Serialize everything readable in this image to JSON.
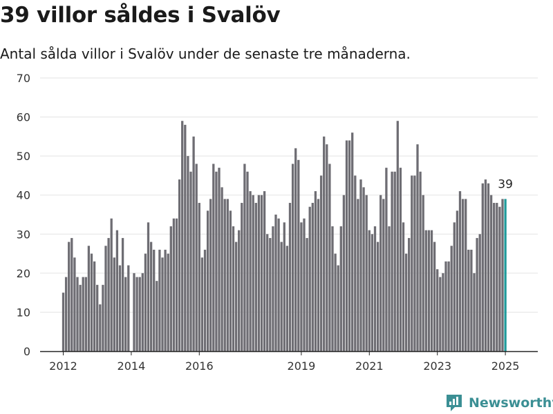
{
  "header": {
    "title": "39 villor såldes i Svalöv",
    "subtitle": "Antal sålda villor i Svalöv under de senaste tre månaderna."
  },
  "brand": {
    "name": "Newsworthy",
    "icon": "newsworthy-logo-icon"
  },
  "colors": {
    "bar": "#6e6d73",
    "highlight": "#1f9a9a",
    "grid": "#e3e3e3",
    "brand": "#3b8f94"
  },
  "chart_data": {
    "type": "bar",
    "title": "39 villor såldes i Svalöv",
    "subtitle": "Antal sålda villor i Svalöv under de senaste tre månaderna.",
    "xlabel": "",
    "ylabel": "",
    "ylim": [
      0,
      70
    ],
    "y_ticks": [
      0,
      10,
      20,
      30,
      40,
      50,
      60,
      70
    ],
    "x_ticks": [
      "2012",
      "2014",
      "2016",
      "2019",
      "2021",
      "2023",
      "2025"
    ],
    "grid": true,
    "frequency": "monthly, rolling three-month sum",
    "start": "2012-01",
    "end": "2025-01",
    "highlight": {
      "label": "39",
      "period": "2025-01",
      "value": 39
    },
    "values": [
      15,
      19,
      28,
      29,
      24,
      19,
      17,
      19,
      19,
      27,
      25,
      23,
      17,
      12,
      17,
      27,
      29,
      34,
      24,
      31,
      22,
      29,
      19,
      22,
      0,
      20,
      19,
      19,
      20,
      25,
      33,
      28,
      26,
      18,
      26,
      24,
      26,
      25,
      32,
      34,
      34,
      44,
      59,
      58,
      50,
      46,
      55,
      48,
      38,
      24,
      26,
      36,
      39,
      48,
      46,
      47,
      42,
      39,
      39,
      36,
      32,
      28,
      31,
      38,
      48,
      46,
      41,
      40,
      38,
      40,
      40,
      41,
      30,
      29,
      32,
      35,
      34,
      28,
      33,
      27,
      38,
      48,
      52,
      49,
      33,
      34,
      29,
      37,
      38,
      41,
      39,
      45,
      55,
      53,
      48,
      32,
      25,
      22,
      32,
      40,
      54,
      54,
      56,
      45,
      39,
      44,
      42,
      40,
      31,
      30,
      32,
      28,
      40,
      39,
      47,
      32,
      46,
      46,
      59,
      47,
      33,
      25,
      29,
      45,
      45,
      53,
      46,
      40,
      31,
      31,
      31,
      28,
      21,
      19,
      20,
      23,
      23,
      27,
      33,
      36,
      41,
      39,
      39,
      26,
      26,
      20,
      29,
      30,
      43,
      44,
      43,
      40,
      38,
      38,
      37,
      39,
      39
    ]
  }
}
